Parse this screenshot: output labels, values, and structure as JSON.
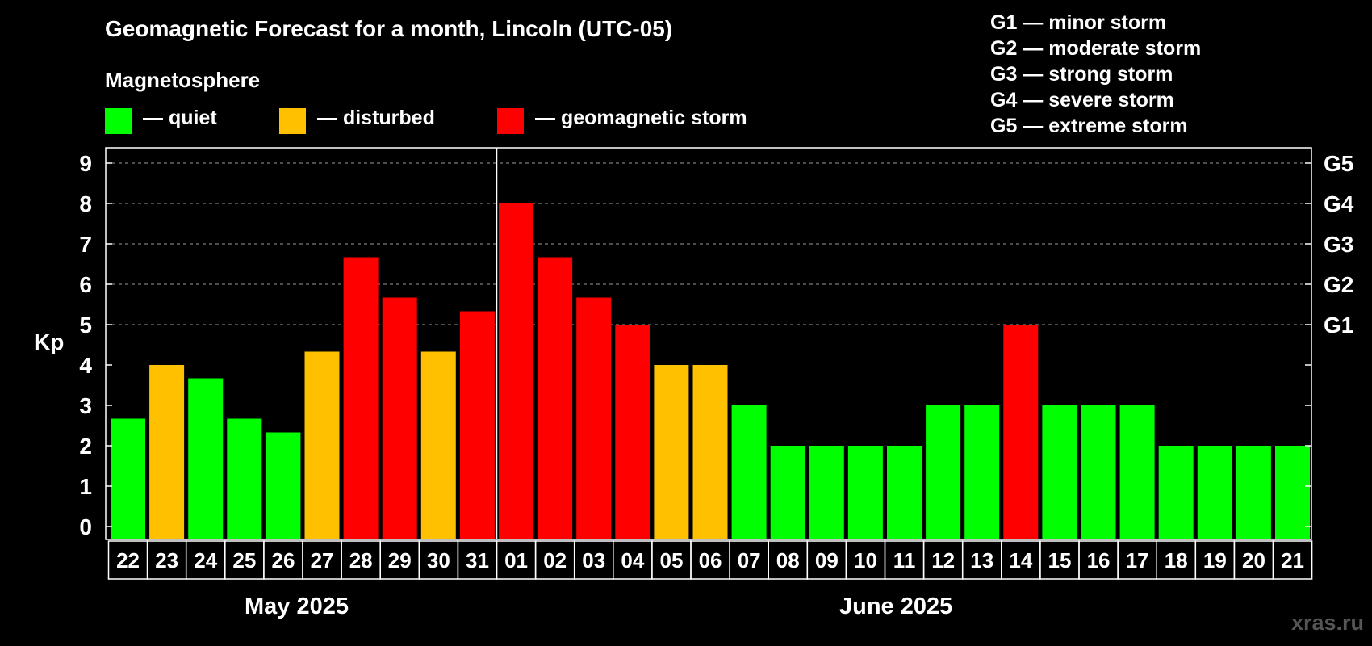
{
  "title": "Geomagnetic Forecast for a month, Lincoln (UTC-05)",
  "magnetosphere_label": "Magnetosphere",
  "legend": [
    {
      "label": "— quiet",
      "color": "#00ff00"
    },
    {
      "label": "— disturbed",
      "color": "#ffc000"
    },
    {
      "label": "— geomagnetic storm",
      "color": "#ff0000"
    }
  ],
  "storm_scale": [
    "G1 — minor storm",
    "G2 — moderate storm",
    "G3 — strong storm",
    "G4 — severe storm",
    "G5 — extreme storm"
  ],
  "watermark": "xras.ru",
  "chart_data": {
    "type": "bar",
    "title": "Geomagnetic Forecast for a month, Lincoln (UTC-05)",
    "ylabel": "Kp",
    "ylim": [
      0,
      9
    ],
    "yticks": [
      "0",
      "1",
      "2",
      "3",
      "4",
      "5",
      "6",
      "7",
      "8",
      "9"
    ],
    "right_axis": [
      {
        "kp": 5,
        "label": "G1"
      },
      {
        "kp": 6,
        "label": "G2"
      },
      {
        "kp": 7,
        "label": "G3"
      },
      {
        "kp": 8,
        "label": "G4"
      },
      {
        "kp": 9,
        "label": "G5"
      }
    ],
    "grid": "dashed horizontal at Kp 5-9",
    "categories": [
      "22",
      "23",
      "24",
      "25",
      "26",
      "27",
      "28",
      "29",
      "30",
      "31",
      "01",
      "02",
      "03",
      "04",
      "05",
      "06",
      "07",
      "08",
      "09",
      "10",
      "11",
      "12",
      "13",
      "14",
      "15",
      "16",
      "17",
      "18",
      "19",
      "20",
      "21"
    ],
    "values": [
      2.67,
      4,
      3.67,
      2.67,
      2.33,
      4.33,
      6.67,
      5.67,
      4.33,
      5.33,
      8,
      6.67,
      5.67,
      5,
      4,
      4,
      3,
      2,
      2,
      2,
      2,
      3,
      3,
      5,
      3,
      3,
      3,
      2,
      2,
      2,
      2
    ],
    "levels": [
      "quiet",
      "disturbed",
      "quiet",
      "quiet",
      "quiet",
      "disturbed",
      "storm",
      "storm",
      "disturbed",
      "storm",
      "storm",
      "storm",
      "storm",
      "storm",
      "disturbed",
      "disturbed",
      "quiet",
      "quiet",
      "quiet",
      "quiet",
      "quiet",
      "quiet",
      "quiet",
      "storm",
      "quiet",
      "quiet",
      "quiet",
      "quiet",
      "quiet",
      "quiet",
      "quiet"
    ],
    "level_colors": {
      "quiet": "#00ff00",
      "disturbed": "#ffc000",
      "storm": "#ff0000"
    },
    "months": [
      {
        "label": "May 2025",
        "first_index": 0,
        "last_index": 9
      },
      {
        "label": "June 2025",
        "first_index": 10,
        "last_index": 30
      }
    ],
    "month_divider_after_index": 9
  }
}
